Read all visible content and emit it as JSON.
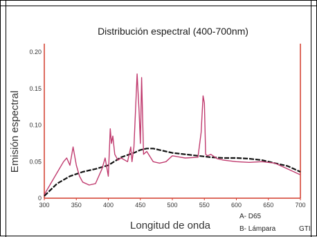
{
  "chart_data": {
    "type": "line",
    "title": "Distribución espectral (400-700nm)",
    "xlabel": "Longitud de onda",
    "ylabel": "Emisión espectral",
    "xlim": [
      300,
      700
    ],
    "ylim": [
      0,
      0.2
    ],
    "x_ticks": [
      "300",
      "350",
      "400",
      "450",
      "500",
      "550",
      "600",
      "650",
      "700"
    ],
    "y_ticks": [
      "0",
      "0.05",
      "0.10",
      "0.15",
      "0.20"
    ],
    "grid": false,
    "legend": [
      "A- D65",
      "B- Lámpara",
      "GTI"
    ],
    "colors": {
      "axes": "#d23a2a",
      "lamp": "#c03a6e",
      "d65": "#111111"
    },
    "series": [
      {
        "name": "D65",
        "x": [
          300,
          320,
          340,
          360,
          380,
          400,
          420,
          440,
          450,
          460,
          470,
          480,
          500,
          520,
          540,
          560,
          580,
          600,
          620,
          640,
          660,
          680,
          690,
          700
        ],
        "y": [
          0.003,
          0.02,
          0.03,
          0.036,
          0.04,
          0.045,
          0.056,
          0.062,
          0.066,
          0.068,
          0.068,
          0.066,
          0.062,
          0.06,
          0.058,
          0.056,
          0.055,
          0.055,
          0.054,
          0.052,
          0.048,
          0.044,
          0.04,
          0.036
        ]
      },
      {
        "name": "Lámpara",
        "x": [
          300,
          310,
          320,
          330,
          335,
          340,
          345,
          350,
          355,
          360,
          370,
          380,
          390,
          395,
          400,
          403,
          405,
          407,
          410,
          415,
          420,
          430,
          435,
          437,
          440,
          445,
          448,
          450,
          452,
          455,
          460,
          470,
          480,
          490,
          500,
          520,
          540,
          545,
          548,
          550,
          552,
          555,
          560,
          570,
          580,
          600,
          620,
          640,
          660,
          680,
          700
        ],
        "y": [
          0.005,
          0.02,
          0.035,
          0.05,
          0.055,
          0.045,
          0.07,
          0.045,
          0.03,
          0.022,
          0.018,
          0.02,
          0.04,
          0.055,
          0.03,
          0.095,
          0.075,
          0.085,
          0.06,
          0.052,
          0.055,
          0.05,
          0.07,
          0.05,
          0.07,
          0.17,
          0.12,
          0.075,
          0.165,
          0.06,
          0.064,
          0.05,
          0.048,
          0.05,
          0.058,
          0.055,
          0.056,
          0.09,
          0.14,
          0.13,
          0.06,
          0.058,
          0.06,
          0.054,
          0.052,
          0.05,
          0.049,
          0.05,
          0.048,
          0.04,
          0.032
        ]
      }
    ]
  }
}
